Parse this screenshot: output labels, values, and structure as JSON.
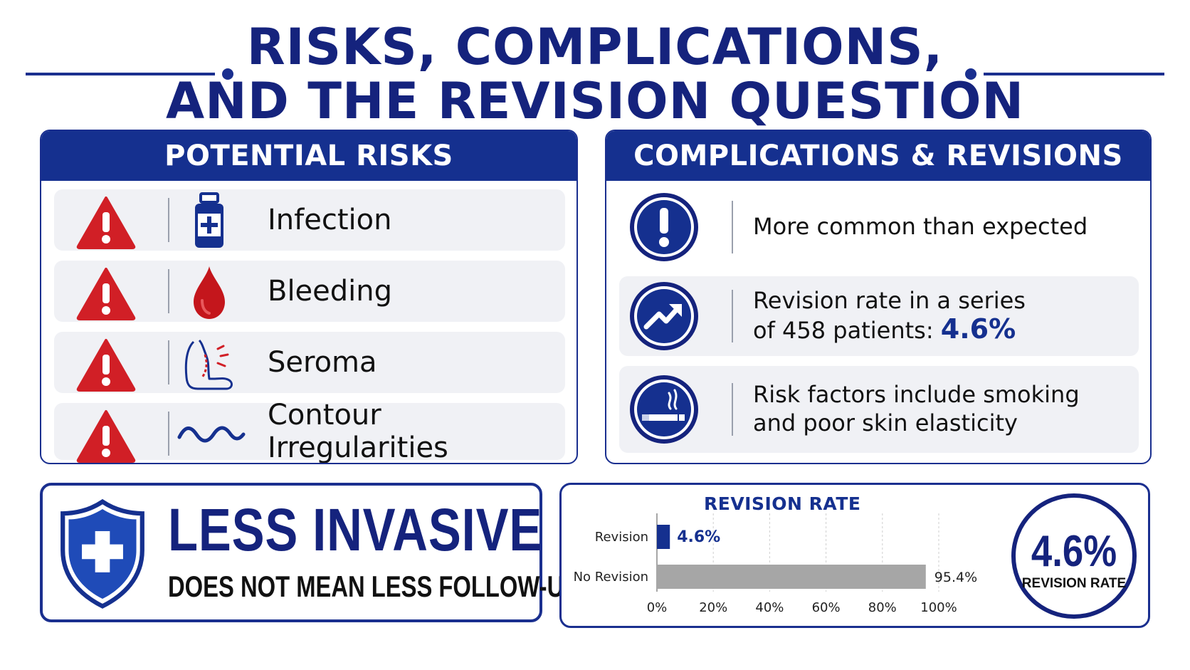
{
  "title": {
    "line1": "RISKS, COMPLICATIONS,",
    "line2": "AND THE REVISION QUESTION"
  },
  "colors": {
    "navy": "#15308f",
    "red": "#d11f26",
    "gray_bar": "#a6a6a6"
  },
  "risks": {
    "header": "POTENTIAL RISKS",
    "items": [
      {
        "label": "Infection",
        "icon": "medicine-bottle-icon"
      },
      {
        "label": "Bleeding",
        "icon": "blood-drop-icon"
      },
      {
        "label": "Seroma",
        "icon": "swollen-arm-icon"
      },
      {
        "label": "Contour Irregularities",
        "icon": "wavy-line-icon"
      }
    ]
  },
  "complications": {
    "header": "COMPLICATIONS & REVISIONS",
    "items": [
      {
        "text": "More common than expected",
        "icon": "exclamation-icon"
      },
      {
        "text_line1": "Revision rate in a series",
        "text_line2": "of 458 patients:",
        "highlight": "4.6%",
        "icon": "trend-up-icon"
      },
      {
        "text_line1": "Risk factors include smoking",
        "text_line2": "and poor skin elasticity",
        "icon": "smoking-icon"
      }
    ]
  },
  "callout": {
    "title": "LESS INVASIVE",
    "subtitle": "DOES NOT MEAN LESS FOLLOW-UP",
    "icon": "shield-cross-icon"
  },
  "revision_summary": {
    "value": "4.6%",
    "label": "REVISION RATE"
  },
  "chart_data": {
    "type": "bar",
    "orientation": "horizontal",
    "title": "REVISION RATE",
    "categories": [
      "Revision",
      "No Revision"
    ],
    "values": [
      4.6,
      95.4
    ],
    "value_labels": [
      "4.6%",
      "95.4%"
    ],
    "colors": [
      "#15308f",
      "#a6a6a6"
    ],
    "xlim": [
      0,
      100
    ],
    "x_ticks": [
      "0%",
      "20%",
      "40%",
      "60%",
      "80%",
      "100%"
    ],
    "grid": true
  }
}
